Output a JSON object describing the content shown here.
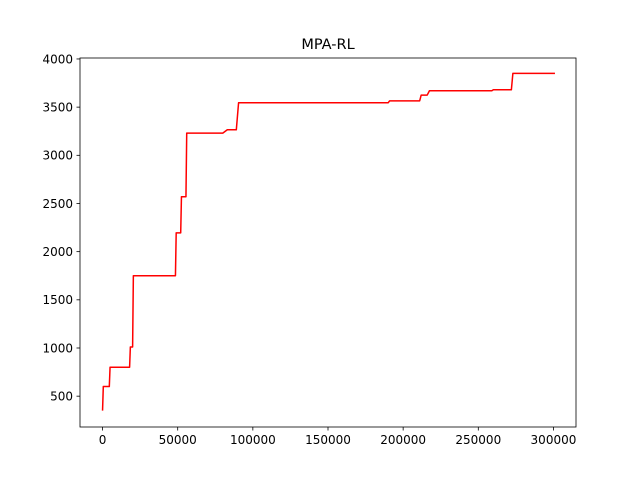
{
  "chart_data": {
    "type": "line",
    "title": "MPA-RL",
    "xlabel": "",
    "ylabel": "",
    "xlim": [
      -15000,
      315000
    ],
    "ylim": [
      180,
      4010
    ],
    "grid": false,
    "legend": "none",
    "x_ticks": [
      0,
      50000,
      100000,
      150000,
      200000,
      250000,
      300000
    ],
    "x_tick_labels": [
      "0",
      "50000",
      "100000",
      "150000",
      "200000",
      "250000",
      "300000"
    ],
    "y_ticks": [
      500,
      1000,
      1500,
      2000,
      2500,
      3000,
      3500,
      4000
    ],
    "y_tick_labels": [
      "500",
      "1000",
      "1500",
      "2000",
      "2500",
      "3000",
      "3500",
      "4000"
    ],
    "series": [
      {
        "color": "#ff0000",
        "x": [
          0,
          500,
          4500,
          5000,
          18000,
          18500,
          20000,
          20500,
          22000,
          48500,
          49000,
          52000,
          52500,
          55500,
          56000,
          57500,
          58000,
          80000,
          83000,
          89000,
          90500,
          190000,
          191000,
          211000,
          212000,
          216000,
          217500,
          259000,
          260000,
          272000,
          273000,
          301000
        ],
        "y": [
          350,
          600,
          600,
          800,
          800,
          1010,
          1010,
          1750,
          1750,
          1750,
          2195,
          2195,
          2570,
          2570,
          3230,
          3230,
          3230,
          3230,
          3265,
          3265,
          3545,
          3545,
          3565,
          3565,
          3625,
          3625,
          3670,
          3670,
          3680,
          3680,
          3850,
          3850
        ]
      }
    ]
  }
}
